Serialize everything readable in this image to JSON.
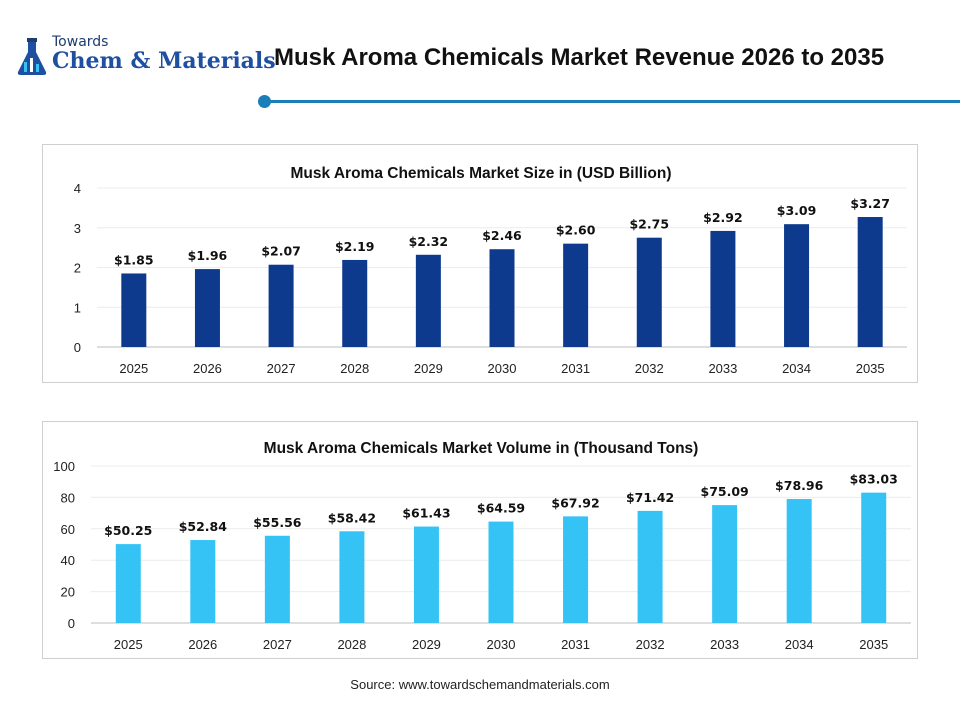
{
  "header": {
    "logo_top": "Towards",
    "logo_main": "Chem & Materials",
    "title": "Musk Aroma Chemicals Market Revenue 2026 to 2035"
  },
  "colors": {
    "accent": "#1a7fb8",
    "bar_dark": "#0d3a8c",
    "bar_light": "#35c3f5"
  },
  "chart_data": [
    {
      "type": "bar",
      "title": "Musk Aroma Chemicals Market Size in (USD Billion)",
      "categories": [
        "2025",
        "2026",
        "2027",
        "2028",
        "2029",
        "2030",
        "2031",
        "2032",
        "2033",
        "2034",
        "2035"
      ],
      "values": [
        1.85,
        1.96,
        2.07,
        2.19,
        2.32,
        2.46,
        2.6,
        2.75,
        2.92,
        3.09,
        3.27
      ],
      "data_labels": [
        "$1.85",
        "$1.96",
        "$2.07",
        "$2.19",
        "$2.32",
        "$2.46",
        "$2.60",
        "$2.75",
        "$2.92",
        "$3.09",
        "$3.27"
      ],
      "yticks": [
        "0",
        "1",
        "2",
        "3",
        "4"
      ],
      "ylim": [
        0,
        4
      ],
      "grid": true,
      "color": "#0d3a8c"
    },
    {
      "type": "bar",
      "title": "Musk Aroma Chemicals Market Volume in (Thousand Tons)",
      "categories": [
        "2025",
        "2026",
        "2027",
        "2028",
        "2029",
        "2030",
        "2031",
        "2032",
        "2033",
        "2034",
        "2035"
      ],
      "values": [
        50.25,
        52.84,
        55.56,
        58.42,
        61.43,
        64.59,
        67.92,
        71.42,
        75.09,
        78.96,
        83.03
      ],
      "data_labels": [
        "$50.25",
        "$52.84",
        "$55.56",
        "$58.42",
        "$61.43",
        "$64.59",
        "$67.92",
        "$71.42",
        "$75.09",
        "$78.96",
        "$83.03"
      ],
      "yticks": [
        "0",
        "20",
        "40",
        "60",
        "80",
        "100"
      ],
      "ylim": [
        0,
        100
      ],
      "grid": true,
      "color": "#35c3f5"
    }
  ],
  "source": "Source: www.towardschemandmaterials.com"
}
